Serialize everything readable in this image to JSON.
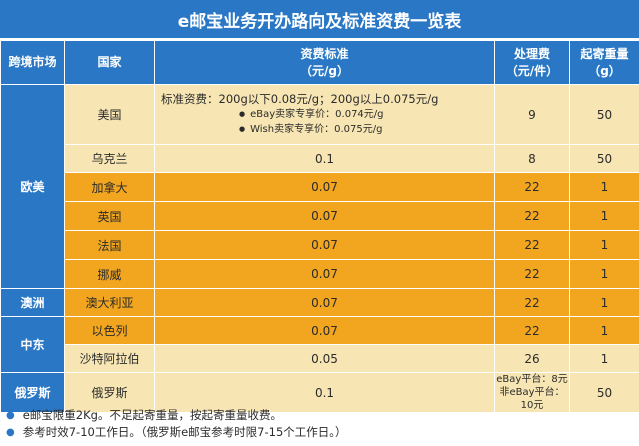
{
  "title": "e邮宝业务开办路向及标准资费一览表",
  "headers": {
    "market": "跨境市场",
    "country": "国家",
    "rate_line1": "资费标准",
    "rate_line2": "（元/g）",
    "fee_line1": "处理费",
    "fee_line2": "（元/件）",
    "min_line1": "起寄重量",
    "min_line2": "（g）"
  },
  "regions": {
    "europe_america": "欧美",
    "australia": "澳洲",
    "middle_east": "中东",
    "russia": "俄罗斯"
  },
  "usa": {
    "country": "美国",
    "standard": "标准资费：200g以下0.08元/g；200g以上0.075元/g",
    "ebay": "eBay卖家专享价：0.074元/g",
    "wish": "Wish卖家专享价：0.075元/g",
    "fee": "9",
    "min": "50"
  },
  "rows": [
    {
      "country": "乌克兰",
      "rate": "0.1",
      "fee": "8",
      "min": "50"
    },
    {
      "country": "加拿大",
      "rate": "0.07",
      "fee": "22",
      "min": "1"
    },
    {
      "country": "英国",
      "rate": "0.07",
      "fee": "22",
      "min": "1"
    },
    {
      "country": "法国",
      "rate": "0.07",
      "fee": "22",
      "min": "1"
    },
    {
      "country": "挪威",
      "rate": "0.07",
      "fee": "22",
      "min": "1"
    },
    {
      "country": "澳大利亚",
      "rate": "0.07",
      "fee": "22",
      "min": "1"
    },
    {
      "country": "以色列",
      "rate": "0.07",
      "fee": "22",
      "min": "1"
    },
    {
      "country": "沙特阿拉伯",
      "rate": "0.05",
      "fee": "26",
      "min": "1"
    }
  ],
  "russia": {
    "country": "俄罗斯",
    "rate": "0.1",
    "fee_ebay": "eBay平台：8元",
    "fee_other": "非eBay平台：10元",
    "min": "50"
  },
  "notes": [
    "e邮宝限重2Kg。不足起寄重量，按起寄重量收费。",
    "参考时效7-10工作日。（俄罗斯e邮宝参考时限7-15个工作日。）"
  ],
  "colors": {
    "header_blue": "#2a78c5",
    "orange": "#f2a51e",
    "pale_yellow": "#f7e6b4"
  }
}
